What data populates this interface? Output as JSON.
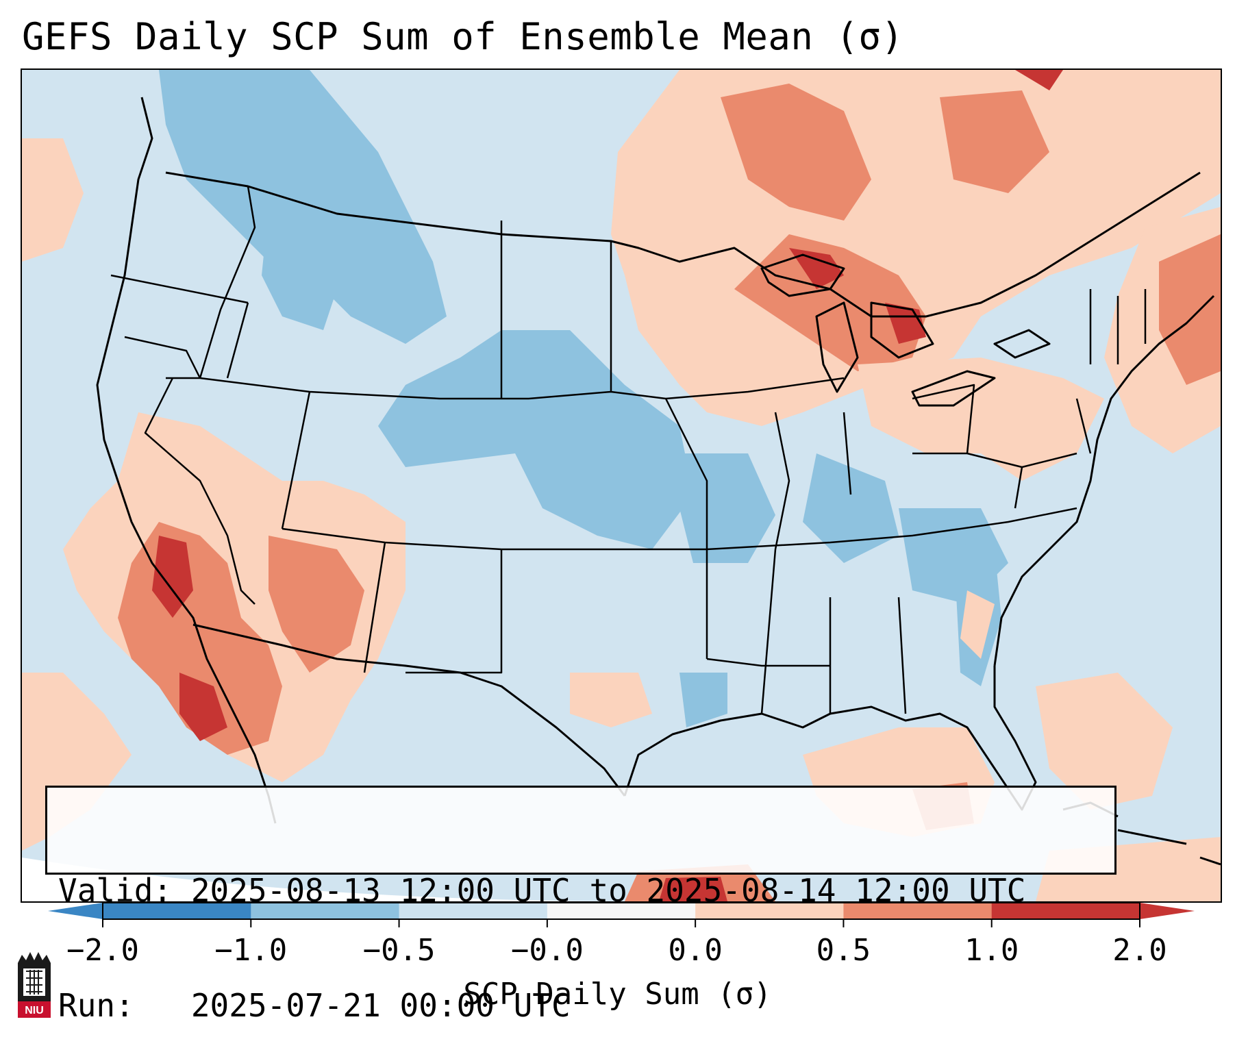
{
  "title": "GEFS Daily SCP Sum of Ensemble Mean (σ)",
  "info": {
    "valid_line": "Valid: 2025-08-13 12:00 UTC to 2025-08-14 12:00 UTC",
    "run_line": "Run:   2025-07-21 00:00 UTC"
  },
  "colorbar": {
    "label": "SCP Daily Sum (σ)",
    "ticks": [
      "−2.0",
      "−1.0",
      "−0.5",
      "−0.0",
      "0.0",
      "0.5",
      "1.0",
      "2.0"
    ],
    "bins": [
      {
        "color": "#3a86c4"
      },
      {
        "color": "#8ec2df"
      },
      {
        "color": "#cde2ef"
      },
      {
        "color": "#f7f7f7"
      },
      {
        "color": "#fbd3bd"
      },
      {
        "color": "#ea8a6d"
      },
      {
        "color": "#c63533"
      }
    ],
    "under_color": "#3a86c4",
    "over_color": "#c63533"
  },
  "map": {
    "ocean_base_color": "#d1e4f0",
    "land_base_color": "#d1e4f0",
    "border_color": "#000000"
  },
  "logo": {
    "text": "NIU",
    "color": "#c8102e"
  }
}
